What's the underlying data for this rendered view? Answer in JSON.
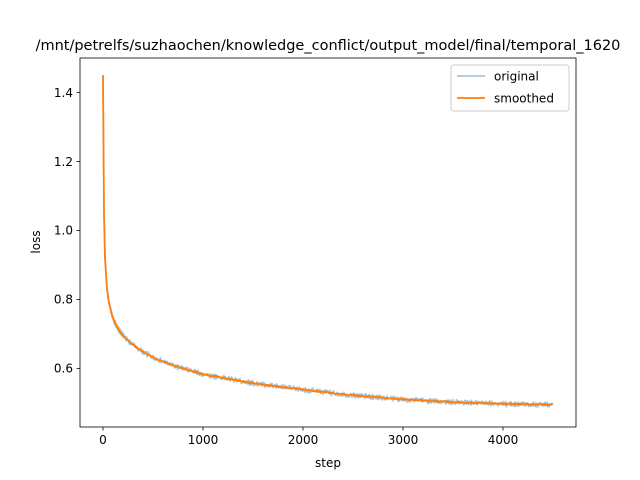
{
  "chart_data": {
    "type": "line",
    "title": "/mnt/petrelfs/suzhaochen/knowledge_conflict/output_model/final/temporal_1620",
    "xlabel": "step",
    "ylabel": "loss",
    "xlim": [
      -230,
      4730
    ],
    "ylim": [
      0.43,
      1.5
    ],
    "xticks": [
      0,
      1000,
      2000,
      3000,
      4000
    ],
    "xtick_labels": [
      "0",
      "1000",
      "2000",
      "3000",
      "4000"
    ],
    "yticks": [
      0.6,
      0.8,
      1.0,
      1.2,
      1.4
    ],
    "ytick_labels": [
      "0.6",
      "0.8",
      "1.0",
      "1.2",
      "1.4"
    ],
    "grid": false,
    "legend_position": "top-right",
    "series": [
      {
        "name": "original",
        "color": "#1f77b4",
        "opacity": 0.4,
        "noise": 0.008,
        "x": [
          0,
          10,
          20,
          40,
          60,
          80,
          100,
          150,
          200,
          300,
          400,
          500,
          700,
          1000,
          1500,
          2000,
          2500,
          3000,
          3500,
          4000,
          4500
        ],
        "y": [
          1.45,
          1.05,
          0.92,
          0.83,
          0.79,
          0.765,
          0.745,
          0.715,
          0.695,
          0.668,
          0.648,
          0.632,
          0.608,
          0.583,
          0.557,
          0.538,
          0.522,
          0.51,
          0.502,
          0.497,
          0.495
        ]
      },
      {
        "name": "smoothed",
        "color": "#ff7f0e",
        "opacity": 1,
        "noise": 0.002,
        "x": [
          0,
          10,
          20,
          40,
          60,
          80,
          100,
          150,
          200,
          300,
          400,
          500,
          700,
          1000,
          1500,
          2000,
          2500,
          3000,
          3500,
          4000,
          4500
        ],
        "y": [
          1.45,
          1.05,
          0.92,
          0.83,
          0.79,
          0.765,
          0.745,
          0.715,
          0.695,
          0.668,
          0.648,
          0.632,
          0.608,
          0.583,
          0.557,
          0.538,
          0.522,
          0.51,
          0.502,
          0.497,
          0.495
        ]
      }
    ]
  }
}
